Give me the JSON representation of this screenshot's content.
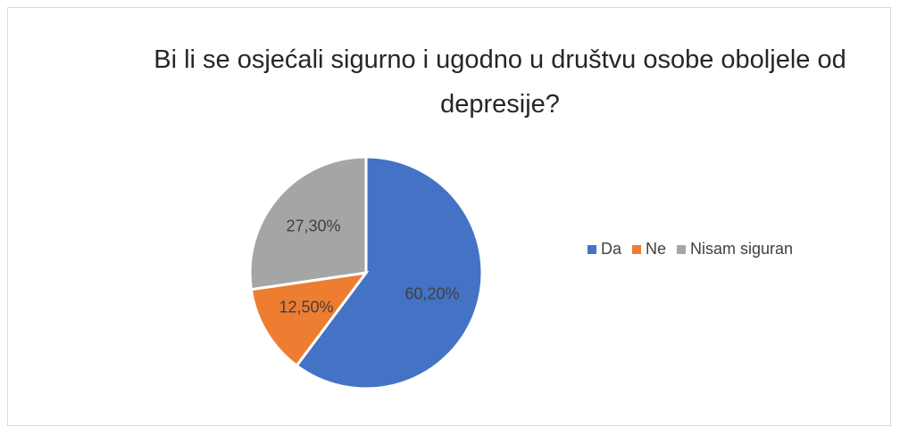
{
  "chart_data": {
    "type": "pie",
    "title": "Bi li se osjećali sigurno i ugodno u društvu osobe oboljele od depresije?",
    "categories": [
      "Da",
      "Ne",
      "Nisam siguran"
    ],
    "values": [
      60.2,
      12.5,
      27.3
    ],
    "value_labels": [
      "60,20%",
      "12,50%",
      "27,30%"
    ],
    "colors": [
      "#4472c4",
      "#ed7d31",
      "#a5a5a5"
    ],
    "legend": "right"
  }
}
